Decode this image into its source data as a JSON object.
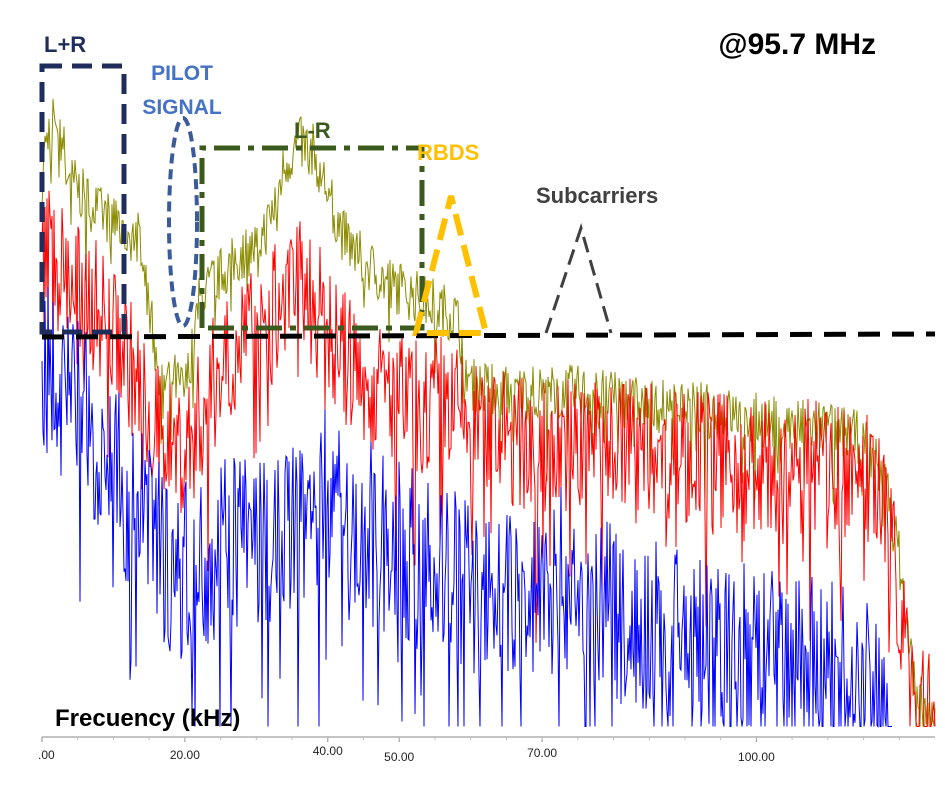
{
  "chart_data": {
    "type": "line",
    "title": "@95.7 MHz",
    "xlabel": "Frecuency (kHz)",
    "ylabel": "",
    "xlim": [
      0,
      125
    ],
    "ylim": [
      0,
      100
    ],
    "x_ticks": [
      {
        "value": 0,
        "label": ".00"
      },
      {
        "value": 20,
        "label": "20.00"
      },
      {
        "value": 40,
        "label": "40.00"
      },
      {
        "value": 50,
        "label": "50.00"
      },
      {
        "value": 70,
        "label": "70.00"
      },
      {
        "value": 100,
        "label": "100.00"
      }
    ],
    "series": [
      {
        "color": "#8b8b00",
        "x": [
          0,
          1,
          2,
          4,
          6,
          8,
          10,
          12,
          14,
          15,
          16,
          17,
          18,
          19,
          20,
          21,
          22,
          24,
          26,
          28,
          30,
          32,
          34,
          36,
          38,
          40,
          42,
          44,
          46,
          48,
          50,
          52,
          54,
          56,
          58,
          60,
          65,
          70,
          75,
          80,
          85,
          90,
          95,
          100,
          105,
          110,
          115,
          118,
          120,
          121,
          122,
          123,
          124,
          125
        ],
        "values": [
          82,
          87,
          89,
          80,
          77,
          75,
          74,
          72,
          71,
          62,
          54,
          50,
          52,
          50,
          49,
          55,
          62,
          65,
          67,
          69,
          70,
          74,
          82,
          85,
          84,
          78,
          72,
          69,
          67,
          65,
          64,
          63,
          62,
          61,
          60,
          50,
          49,
          49,
          49,
          48,
          47,
          47,
          46,
          45,
          44,
          44,
          42,
          36,
          25,
          15,
          8,
          4,
          2,
          1
        ]
      },
      {
        "color": "#ff0000",
        "x": [
          0,
          1,
          2,
          4,
          6,
          8,
          10,
          12,
          14,
          16,
          18,
          20,
          22,
          24,
          26,
          28,
          30,
          32,
          34,
          36,
          38,
          40,
          42,
          44,
          46,
          48,
          50,
          52,
          54,
          56,
          58,
          60,
          65,
          70,
          75,
          80,
          85,
          90,
          95,
          100,
          105,
          110,
          115,
          117,
          118,
          119,
          120,
          121,
          122,
          123,
          124,
          125
        ],
        "values": [
          66,
          70,
          68,
          65,
          63,
          61,
          58,
          54,
          48,
          43,
          42,
          40,
          45,
          50,
          55,
          57,
          58,
          60,
          62,
          64,
          62,
          58,
          54,
          52,
          50,
          49,
          48,
          47,
          47,
          48,
          46,
          44,
          42,
          41,
          42,
          42,
          41,
          40,
          39,
          38,
          38,
          38,
          37,
          34,
          30,
          25,
          20,
          12,
          6,
          3,
          2,
          1
        ]
      },
      {
        "color": "#0000ff",
        "x": [
          0,
          1,
          2,
          4,
          6,
          8,
          10,
          12,
          14,
          16,
          18,
          20,
          22,
          24,
          26,
          28,
          30,
          32,
          34,
          36,
          38,
          40,
          42,
          44,
          46,
          48,
          50,
          52,
          54,
          56,
          58,
          60,
          62,
          64,
          66,
          68,
          70,
          72,
          74,
          76,
          78,
          80,
          85,
          90,
          95,
          100,
          105,
          110,
          115,
          118,
          119
        ],
        "values": [
          52,
          53,
          50,
          48,
          45,
          42,
          38,
          34,
          30,
          27,
          24,
          23,
          24,
          26,
          27,
          28,
          27,
          28,
          30,
          31,
          33,
          34,
          32,
          30,
          29,
          27,
          26,
          25,
          24,
          23,
          22,
          21,
          20,
          19,
          19,
          21,
          22,
          23,
          21,
          20,
          18,
          17,
          15,
          13,
          12,
          11,
          10,
          9,
          7,
          4,
          2
        ]
      }
    ],
    "annotations": [
      {
        "text": "L+R",
        "color": "#1f2d5c"
      },
      {
        "text": "PILOT SIGNAL",
        "lines": [
          "PILOT",
          "SIGNAL"
        ],
        "color": "#4472c4"
      },
      {
        "text": "L-R",
        "color": "#3c5a1e"
      },
      {
        "text": "RBDS",
        "color": "#ffc000"
      },
      {
        "text": "Subcarriers",
        "color": "#404040"
      }
    ],
    "grid": false,
    "legend": "none"
  }
}
